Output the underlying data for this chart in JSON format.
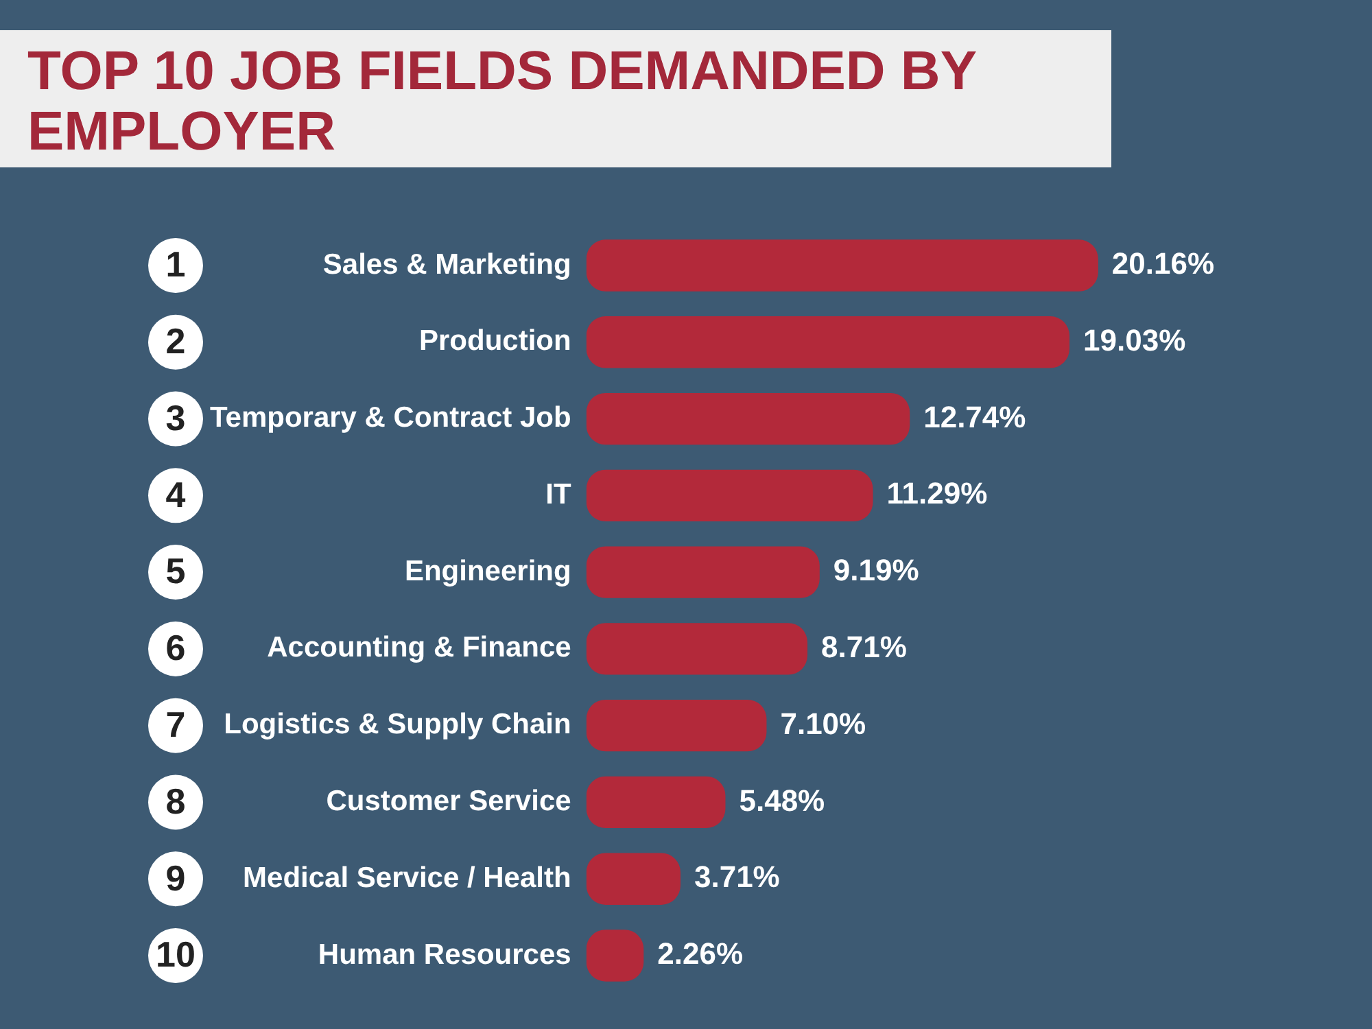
{
  "chart_data": {
    "type": "bar",
    "orientation": "horizontal",
    "title": "TOP 10 JOB FIELDS DEMANDED BY EMPLOYER",
    "categories": [
      "Sales & Marketing",
      "Production",
      "Temporary & Contract Job",
      "IT",
      "Engineering",
      "Accounting & Finance",
      "Logistics & Supply Chain",
      "Customer Service",
      "Medical Service / Health",
      "Human Resources"
    ],
    "values": [
      20.16,
      19.03,
      12.74,
      11.29,
      9.19,
      8.71,
      7.1,
      5.48,
      3.71,
      2.26
    ],
    "value_labels": [
      "20.16%",
      "19.03%",
      "12.74%",
      "11.29%",
      "9.19%",
      "8.71%",
      "7.10%",
      "5.48%",
      "3.71%",
      "2.26%"
    ],
    "color": "#b3293a",
    "annotations": [
      "1",
      "2",
      "3",
      "4",
      "5",
      "6",
      "7",
      "8",
      "9",
      "10"
    ]
  }
}
